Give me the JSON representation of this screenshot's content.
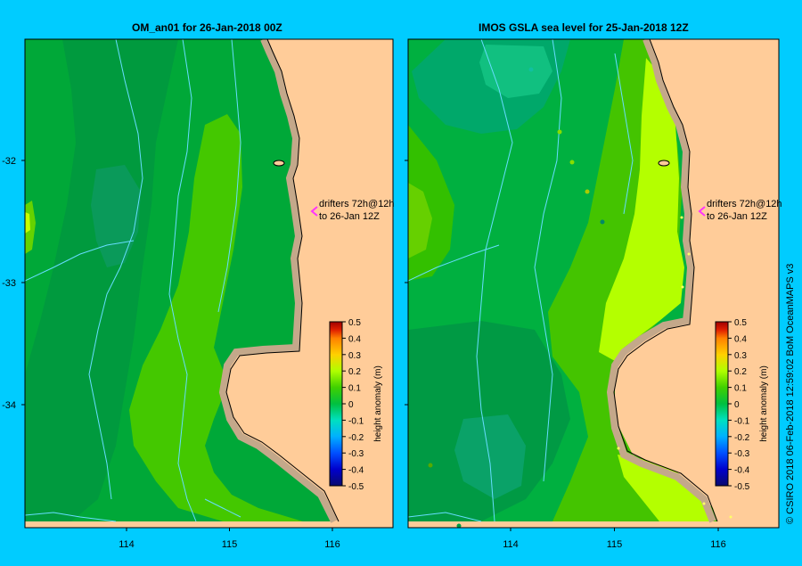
{
  "colors": {
    "background": "#00ccff",
    "land": "#ffcc99",
    "coast": "#c4a88a",
    "outline": "#000000",
    "drifter_arrow": "#ff33ff",
    "drifter_track": "#66ddff"
  },
  "panels": [
    {
      "title": "OM_an01  for 26-Jan-2018 00Z",
      "annotation": {
        "line1": "drifters 72h@12h",
        "line2": "to 26-Jan 12Z"
      },
      "colorbar_label": "height anomaly (m)"
    },
    {
      "title": "IMOS GSLA sea level  for 25-Jan-2018 12Z",
      "annotation": {
        "line1": "drifters 72h@12h",
        "line2": "to 26-Jan 12Z"
      },
      "colorbar_label": "height anomaly (m)"
    }
  ],
  "axes": {
    "lon_ticks": [
      "114",
      "115",
      "116"
    ],
    "lat_ticks": [
      "-32",
      "-33",
      "-34"
    ],
    "lon_values": [
      114,
      115,
      116
    ],
    "lat_values": [
      -32,
      -33,
      -34
    ]
  },
  "colorbar": {
    "min": -0.5,
    "max": 0.5,
    "tick_labels": [
      "0.5",
      "0.4",
      "0.3",
      "0.2",
      "0.1",
      "0",
      "-0.1",
      "-0.2",
      "-0.3",
      "-0.4",
      "-0.5"
    ],
    "stops": [
      "#0a0a6e",
      "#0000cc",
      "#0050ff",
      "#00b0ff",
      "#00e0c0",
      "#00c040",
      "#40d000",
      "#b0ff00",
      "#ffd000",
      "#ff8000",
      "#e02000",
      "#a00000"
    ]
  },
  "credit": "© CSIRO 2018   06-Feb-2018 12:59:02 BoM OceanMAPS v3"
}
